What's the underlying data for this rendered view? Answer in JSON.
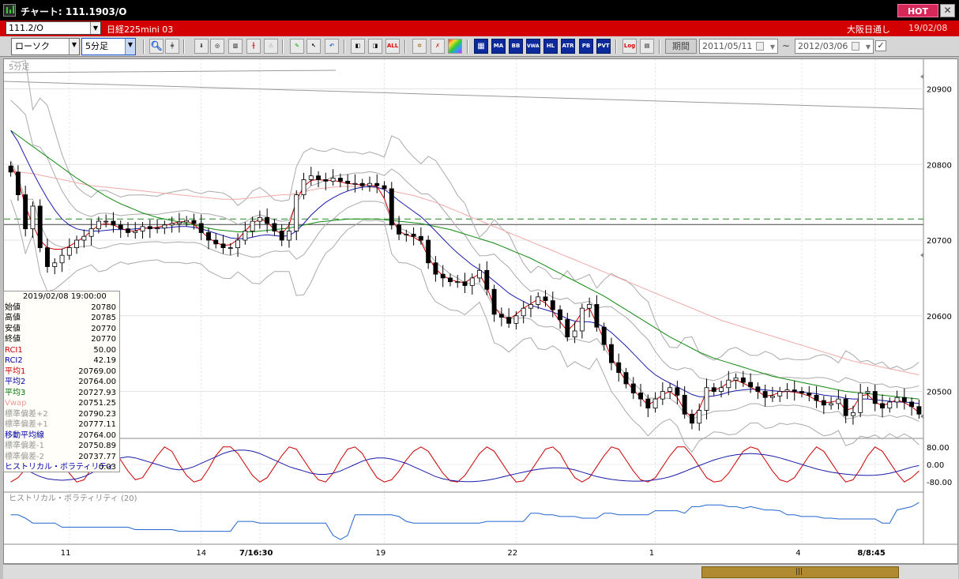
{
  "window": {
    "title": "チャート: 111.1903/O",
    "hot_label": "HOT",
    "close_label": "✕"
  },
  "symbol_bar": {
    "symbol_code": "111.2/O",
    "symbol_name": "日経225mini 03",
    "market": "大阪日通し",
    "date": "19/02/08"
  },
  "toolbar": {
    "chart_type": "ローソク",
    "interval": "5分足",
    "indicator_buttons": [
      "MA",
      "BB",
      "VWAP",
      "HL",
      "ATR",
      "PB",
      "PVT"
    ],
    "all_label": "ALL",
    "log_label": "Log",
    "period_label": "期間",
    "date_from": "2011/05/11",
    "date_to": "2012/03/06",
    "tilde": "~"
  },
  "chart": {
    "interval_label": "5分足",
    "price_axis_labels": [
      "20900",
      "20800",
      "20700",
      "20600",
      "20500"
    ],
    "rci_axis_labels": [
      "80.00",
      "0.00",
      "-80.00"
    ],
    "hv_label": "ヒストリカル・ボラティリティ (20)",
    "time_axis_labels": [
      "11",
      "14",
      "7/16:30",
      "19",
      "22",
      "1",
      "4",
      "8/8:45"
    ]
  },
  "info_panel": {
    "datetime": "2019/02/08 19:00:00",
    "rows": [
      {
        "label": "始値",
        "value": "20780",
        "color": "#000000"
      },
      {
        "label": "高値",
        "value": "20785",
        "color": "#000000"
      },
      {
        "label": "安値",
        "value": "20770",
        "color": "#000000"
      },
      {
        "label": "終値",
        "value": "20770",
        "color": "#000000"
      },
      {
        "label": "RCI1",
        "value": "50.00",
        "color": "#cc0000"
      },
      {
        "label": "RCI2",
        "value": "42.19",
        "color": "#0000aa"
      },
      {
        "label": "平均1",
        "value": "20769.00",
        "color": "#cc0000"
      },
      {
        "label": "平均2",
        "value": "20764.00",
        "color": "#0000aa"
      },
      {
        "label": "平均3",
        "value": "20727.93",
        "color": "#007700"
      },
      {
        "label": "Vwap",
        "value": "20751.25",
        "color": "#ee9999"
      },
      {
        "label": "標準偏差+2",
        "value": "20790.23",
        "color": "#999999"
      },
      {
        "label": "標準偏差+1",
        "value": "20777.11",
        "color": "#999999"
      },
      {
        "label": "移動平均線",
        "value": "20764.00",
        "color": "#0000aa"
      },
      {
        "label": "標準偏差-1",
        "value": "20750.89",
        "color": "#999999"
      },
      {
        "label": "標準偏差-2",
        "value": "20737.77",
        "color": "#999999"
      },
      {
        "label": "ヒストリカル・ボラティリティ",
        "value": "0.03",
        "color": "#0000aa"
      }
    ]
  },
  "colors": {
    "candle_up": "#ffffff",
    "candle_down": "#000000",
    "ma1": "#cc0000",
    "ma2": "#1a1aaa",
    "ma3": "#118811",
    "vwap": "#f0a8a8",
    "bands": "#aaaaaa",
    "hv": "#2266cc",
    "dashed_level": "#228822"
  },
  "chart_data": {
    "type": "candlestick",
    "price_ylim": [
      20440,
      20935
    ],
    "dashed_level": 20728,
    "close": [
      20790,
      20760,
      20715,
      20745,
      20690,
      20665,
      20670,
      20680,
      20690,
      20700,
      20705,
      20715,
      20725,
      20725,
      20720,
      20715,
      20710,
      20712,
      20718,
      20715,
      20716,
      20720,
      20722,
      20724,
      20726,
      20722,
      20710,
      20700,
      20695,
      20690,
      20690,
      20700,
      20712,
      20725,
      20730,
      20722,
      20712,
      20700,
      20712,
      20760,
      20780,
      20785,
      20780,
      20778,
      20782,
      20778,
      20775,
      20775,
      20772,
      20775,
      20772,
      20768,
      20720,
      20708,
      20708,
      20705,
      20700,
      20670,
      20655,
      20650,
      20645,
      20645,
      20640,
      20650,
      20660,
      20635,
      20602,
      20598,
      20590,
      20600,
      20610,
      20615,
      20625,
      20620,
      20608,
      20595,
      20572,
      20580,
      20610,
      20615,
      20585,
      20562,
      20538,
      20525,
      20510,
      20498,
      20490,
      20478,
      20490,
      20500,
      20505,
      20495,
      20470,
      20458,
      20475,
      20505,
      20500,
      20505,
      20515,
      20518,
      20512,
      20506,
      20500,
      20492,
      20494,
      20500,
      20502,
      20500,
      20498,
      20495,
      20488,
      20482,
      20484,
      20490,
      20468,
      20472,
      20498,
      20500,
      20484,
      20478,
      20486,
      20492,
      20486,
      20480,
      20470
    ],
    "ma1": [
      20800,
      20780,
      20745,
      20720,
      20700,
      20690,
      20688,
      20688,
      20692,
      20698,
      20704,
      20712,
      20720,
      20722,
      20720,
      20716,
      20712,
      20712,
      20716,
      20716,
      20717,
      20719,
      20722,
      20724,
      20725,
      20721,
      20712,
      20703,
      20697,
      20693,
      20694,
      20701,
      20712,
      20722,
      20728,
      20724,
      20714,
      20708,
      20720,
      20752,
      20771,
      20779,
      20780,
      20779,
      20779,
      20777,
      20775,
      20774,
      20773,
      20773,
      20771,
      20755,
      20728,
      20712,
      20707,
      20704,
      20698,
      20678,
      20662,
      20653,
      20648,
      20645,
      20644,
      20650,
      20655,
      20638,
      20612,
      20600,
      20595,
      20602,
      20610,
      20616,
      20622,
      20617,
      20606,
      20592,
      20580,
      20590,
      20605,
      20610,
      20590,
      20568,
      20545,
      20528,
      20514,
      20502,
      20492,
      20482,
      20488,
      20496,
      20500,
      20492,
      20475,
      20465,
      20477,
      20500,
      20502,
      20505,
      20512,
      20515,
      20511,
      20506,
      20500,
      20494,
      20495,
      20499,
      20500,
      20499,
      20497,
      20494,
      20488,
      20485,
      20486,
      20488,
      20475,
      20478,
      20494,
      20496,
      20486,
      20481,
      20485,
      20489,
      20485,
      20480,
      20472
    ],
    "ma2": [
      20845,
      20830,
      20810,
      20790,
      20772,
      20755,
      20740,
      20728,
      20720,
      20715,
      20713,
      20712,
      20712,
      20713,
      20714,
      20714,
      20714,
      20715,
      20716,
      20716,
      20716,
      20716,
      20717,
      20718,
      20718,
      20717,
      20715,
      20712,
      20709,
      20706,
      20703,
      20702,
      20702,
      20704,
      20706,
      20707,
      20706,
      20705,
      20706,
      20712,
      20722,
      20733,
      20742,
      20750,
      20756,
      20761,
      20765,
      20768,
      20770,
      20771,
      20770,
      20767,
      20760,
      20752,
      20745,
      20738,
      20731,
      20722,
      20712,
      20702,
      20692,
      20683,
      20675,
      20667,
      20661,
      20654,
      20646,
      20638,
      20630,
      20624,
      20619,
      20614,
      20611,
      20608,
      20605,
      20601,
      20596,
      20593,
      20592,
      20592,
      20590,
      20585,
      20578,
      20569,
      20560,
      20550,
      20540,
      20530,
      20522,
      20516,
      20511,
      20506,
      20501,
      20496,
      20493,
      20493,
      20494,
      20496,
      20499,
      20501,
      20502,
      20503,
      20503,
      20502,
      20501,
      20500,
      20500,
      20500,
      20499,
      20498,
      20497,
      20495,
      20494,
      20493,
      20491,
      20490,
      20490,
      20490,
      20489,
      20488,
      20487,
      20486,
      20486,
      20485,
      20484
    ],
    "ma3": [
      20845,
      20838,
      20831,
      20824,
      20817,
      20810,
      20803,
      20796,
      20789,
      20782,
      20776,
      20770,
      20764,
      20758,
      20753,
      20748,
      20744,
      20740,
      20736,
      20733,
      20730,
      20728,
      20726,
      20724,
      20722,
      20720,
      20718,
      20716,
      20714,
      20713,
      20712,
      20711,
      20711,
      20711,
      20712,
      20713,
      20714,
      20715,
      20716,
      20718,
      20720,
      20722,
      20724,
      20725,
      20726,
      20727,
      20728,
      20728,
      20728,
      20728,
      20728,
      20727,
      20726,
      20725,
      20724,
      20723,
      20722,
      20720,
      20718,
      20716,
      20714,
      20711,
      20708,
      20705,
      20702,
      20699,
      20696,
      20692,
      20688,
      20684,
      20680,
      20676,
      20671,
      20666,
      20661,
      20656,
      20651,
      20646,
      20641,
      20636,
      20631,
      20626,
      20620,
      20614,
      20608,
      20602,
      20596,
      20590,
      20584,
      20578,
      20572,
      20567,
      20562,
      20557,
      20552,
      20548,
      20544,
      20541,
      20538,
      20535,
      20532,
      20529,
      20526,
      20523,
      20520,
      20518,
      20516,
      20514,
      20512,
      20510,
      20508,
      20506,
      20504,
      20502,
      20500,
      20499,
      20498,
      20497,
      20496,
      20495,
      20494,
      20493,
      20492,
      20491,
      20490
    ],
    "vwap": [
      20790,
      20790,
      20789,
      20788,
      20786,
      20784,
      20782,
      20780,
      20778,
      20776,
      20774,
      20772,
      20771,
      20770,
      20769,
      20768,
      20767,
      20766,
      20765,
      20764,
      20763,
      20762,
      20761,
      20760,
      20759,
      20758,
      20757,
      20756,
      20755,
      20754,
      20754,
      20754,
      20755,
      20756,
      20757,
      20758,
      20759,
      20760,
      20760,
      20762,
      20764,
      20766,
      20768,
      20769,
      20770,
      20771,
      20771,
      20771,
      20771,
      20770,
      20769,
      20767,
      20765,
      20763,
      20761,
      20759,
      20756,
      20753,
      20750,
      20746,
      20742,
      20738,
      20734,
      20730,
      20726,
      20722,
      20718,
      20714,
      20710,
      20706,
      20702,
      20698,
      20694,
      20690,
      20686,
      20682,
      20678,
      20674,
      20670,
      20666,
      20662,
      20658,
      20654,
      20650,
      20646,
      20642,
      20638,
      20634,
      20630,
      20626,
      20622,
      20618,
      20614,
      20610,
      20606,
      20602,
      20598,
      20594,
      20591,
      20588,
      20585,
      20582,
      20579,
      20576,
      20573,
      20570,
      20567,
      20564,
      20561,
      20558,
      20555,
      20552,
      20549,
      20546,
      20543,
      20540,
      20538,
      20536,
      20534,
      20532,
      20530,
      20528,
      20526,
      20524,
      20522
    ],
    "rci1": [
      -80,
      -60,
      -20,
      30,
      70,
      80,
      60,
      10,
      -40,
      -80,
      -70,
      -20,
      40,
      80,
      70,
      20,
      -30,
      -70,
      -60,
      -10,
      40,
      80,
      60,
      0,
      -50,
      -80,
      -70,
      -20,
      40,
      80,
      80,
      50,
      0,
      -50,
      -80,
      -60,
      -10,
      40,
      80,
      70,
      20,
      -30,
      -70,
      -80,
      -40,
      20,
      70,
      80,
      50,
      -10,
      -60,
      -80,
      -70,
      -30,
      20,
      60,
      80,
      60,
      10,
      -40,
      -75,
      -80,
      -50,
      0,
      50,
      80,
      60,
      10,
      -40,
      -80,
      -75,
      -30,
      20,
      70,
      80,
      50,
      -10,
      -60,
      -80,
      -60,
      -10,
      40,
      80,
      70,
      20,
      -30,
      -70,
      -80,
      -60,
      -10,
      40,
      80,
      80,
      40,
      -10,
      -60,
      -80,
      -75,
      -40,
      10,
      60,
      80,
      70,
      20,
      -30,
      -70,
      -80,
      -60,
      -10,
      40,
      80,
      60,
      10,
      -40,
      -80,
      -70,
      -20,
      40,
      80,
      60,
      10,
      -40,
      -80,
      -60,
      -30
    ],
    "rci2": [
      20,
      0,
      -20,
      -40,
      -55,
      -65,
      -70,
      -72,
      -70,
      -65,
      -55,
      -40,
      -20,
      0,
      20,
      30,
      35,
      30,
      20,
      10,
      0,
      -10,
      -20,
      -25,
      -20,
      -10,
      5,
      20,
      35,
      50,
      60,
      65,
      65,
      60,
      50,
      35,
      20,
      5,
      -10,
      -20,
      -30,
      -40,
      -45,
      -45,
      -40,
      -30,
      -15,
      0,
      15,
      25,
      30,
      30,
      25,
      15,
      5,
      -10,
      -25,
      -40,
      -55,
      -65,
      -72,
      -76,
      -78,
      -78,
      -76,
      -72,
      -66,
      -58,
      -50,
      -42,
      -35,
      -28,
      -22,
      -18,
      -15,
      -15,
      -18,
      -25,
      -35,
      -45,
      -55,
      -62,
      -68,
      -72,
      -75,
      -76,
      -76,
      -74,
      -70,
      -64,
      -56,
      -45,
      -32,
      -18,
      -5,
      8,
      20,
      30,
      38,
      44,
      48,
      50,
      48,
      44,
      38,
      30,
      20,
      10,
      0,
      -10,
      -20,
      -28,
      -35,
      -40,
      -44,
      -47,
      -49,
      -50,
      -49,
      -46,
      -40,
      -32,
      -22,
      -12,
      -5
    ],
    "hv": [
      0.3,
      0.3,
      0.26,
      0.2,
      0.2,
      0.2,
      0.2,
      0.15,
      0.15,
      0.15,
      0.15,
      0.15,
      0.15,
      0.15,
      0.15,
      0.15,
      0.15,
      0.12,
      0.12,
      0.12,
      0.12,
      0.12,
      0.12,
      0.1,
      0.1,
      0.1,
      0.1,
      0.1,
      0.1,
      0.1,
      0.1,
      0.22,
      0.22,
      0.22,
      0.2,
      0.2,
      0.2,
      0.2,
      0.2,
      0.2,
      0.2,
      0.2,
      0.2,
      0.2,
      0.05,
      0.0,
      0.05,
      0.3,
      0.3,
      0.3,
      0.3,
      0.3,
      0.3,
      0.28,
      0.22,
      0.2,
      0.2,
      0.2,
      0.2,
      0.2,
      0.2,
      0.2,
      0.2,
      0.2,
      0.2,
      0.22,
      0.22,
      0.22,
      0.22,
      0.22,
      0.22,
      0.32,
      0.32,
      0.3,
      0.3,
      0.28,
      0.28,
      0.28,
      0.26,
      0.26,
      0.26,
      0.32,
      0.32,
      0.3,
      0.3,
      0.3,
      0.3,
      0.3,
      0.35,
      0.35,
      0.35,
      0.35,
      0.32,
      0.4,
      0.4,
      0.42,
      0.42,
      0.42,
      0.4,
      0.4,
      0.38,
      0.4,
      0.38,
      0.36,
      0.36,
      0.35,
      0.3,
      0.3,
      0.28,
      0.28,
      0.28,
      0.26,
      0.26,
      0.25,
      0.25,
      0.25,
      0.25,
      0.25,
      0.25,
      0.2,
      0.2,
      0.36,
      0.38,
      0.4,
      0.45
    ]
  }
}
